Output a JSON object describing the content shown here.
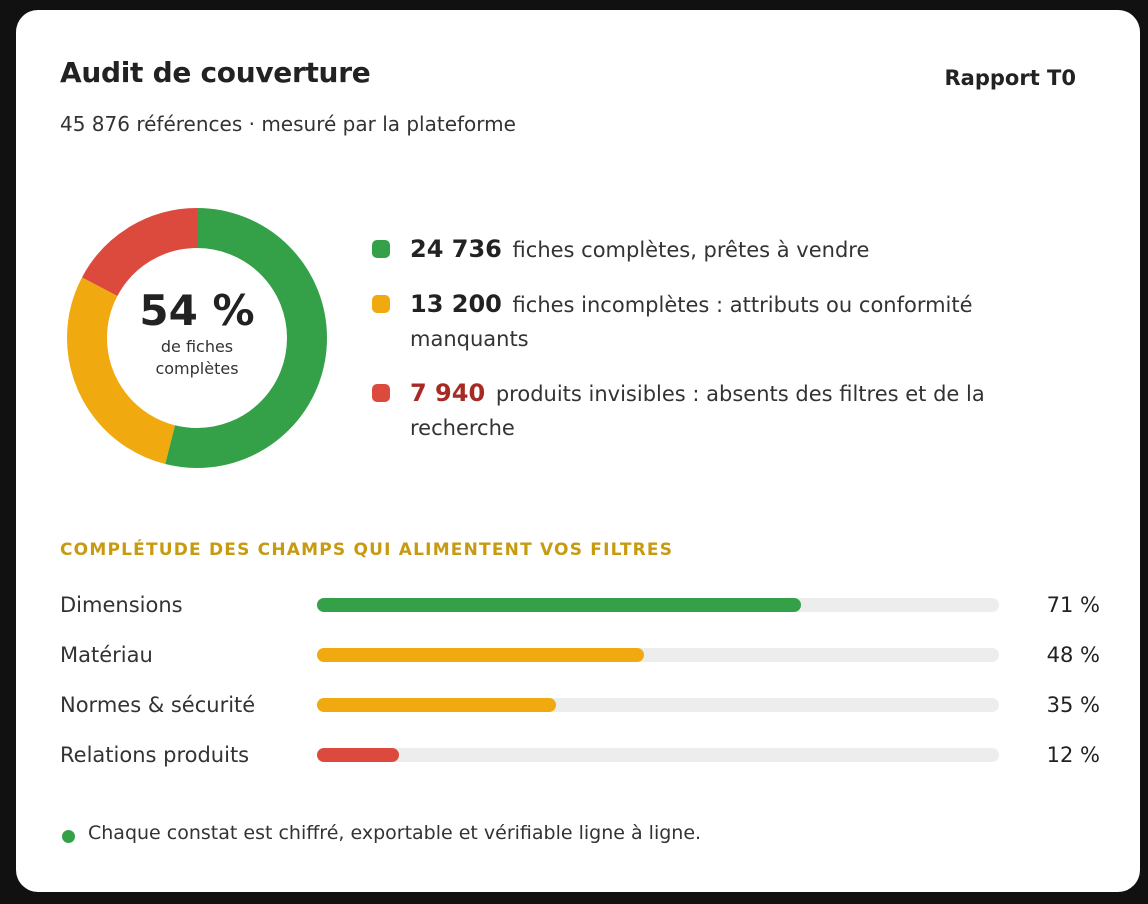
{
  "header": {
    "title": "Audit de couverture",
    "report_label": "Rapport T0",
    "subtitle": "45 876 références · mesuré par la plateforme"
  },
  "colors": {
    "green": "#34a148",
    "amber": "#f0aa10",
    "red": "#dc4a3e",
    "track": "#ededed",
    "section_title": "#c79a10"
  },
  "donut": {
    "percent_label": "54 %",
    "caption": "de fiches complètes",
    "segments": [
      {
        "name": "complete",
        "value": 24736,
        "color": "#34a148"
      },
      {
        "name": "incomplete",
        "value": 13200,
        "color": "#f0aa10"
      },
      {
        "name": "invisible",
        "value": 7940,
        "color": "#dc4a3e"
      }
    ]
  },
  "legend": [
    {
      "number": "24 736",
      "text": "fiches complètes, prêtes à vendre",
      "color": "#34a148",
      "icon": "green-square-icon"
    },
    {
      "number": "13 200",
      "text": "fiches incomplètes : attributs ou conformité manquants",
      "color": "#f0aa10",
      "icon": "amber-square-icon"
    },
    {
      "number": "7 940",
      "text": "produits invisibles : absents des filtres et de la recherche",
      "color": "#dc4a3e",
      "icon": "red-square-icon"
    }
  ],
  "fields": {
    "section_title": "COMPLÉTUDE DES CHAMPS QUI ALIMENTENT VOS FILTRES",
    "items": [
      {
        "label": "Dimensions",
        "percent": 71,
        "display": "71 %",
        "color": "#34a148"
      },
      {
        "label": "Matériau",
        "percent": 48,
        "display": "48 %",
        "color": "#f0aa10"
      },
      {
        "label": "Normes & sécurité",
        "percent": 35,
        "display": "35 %",
        "color": "#f0aa10"
      },
      {
        "label": "Relations produits",
        "percent": 12,
        "display": "12 %",
        "color": "#dc4a3e"
      }
    ]
  },
  "footnote": {
    "text": "Chaque constat est chiffré, exportable et vérifiable ligne à ligne.",
    "color": "#34a148"
  }
}
